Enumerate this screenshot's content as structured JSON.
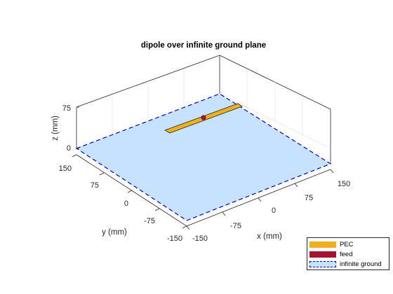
{
  "title": "dipole over infinite ground plane",
  "axes": {
    "x_label": "x (mm)",
    "y_label": "y (mm)",
    "z_label": "z (mm)",
    "x_ticks": [
      "-150",
      "-75",
      "0",
      "75",
      "150"
    ],
    "y_ticks": [
      "150",
      "75",
      "0",
      "-75",
      "-150"
    ],
    "z_ticks": [
      "75",
      "0"
    ]
  },
  "legend": {
    "items": [
      {
        "label": "PEC",
        "color": "#EDB120"
      },
      {
        "label": "feed",
        "color": "#A2142F"
      },
      {
        "label": "infinite ground",
        "color": "#C6E2FF",
        "edge_color": "#0000CC"
      }
    ]
  },
  "colors": {
    "ground_fill": "#C6E2FF",
    "ground_edge": "#0000CC",
    "pec": "#EDB120",
    "feed": "#A2142F",
    "box": "#262626",
    "grid": "#DCDCDC"
  }
}
